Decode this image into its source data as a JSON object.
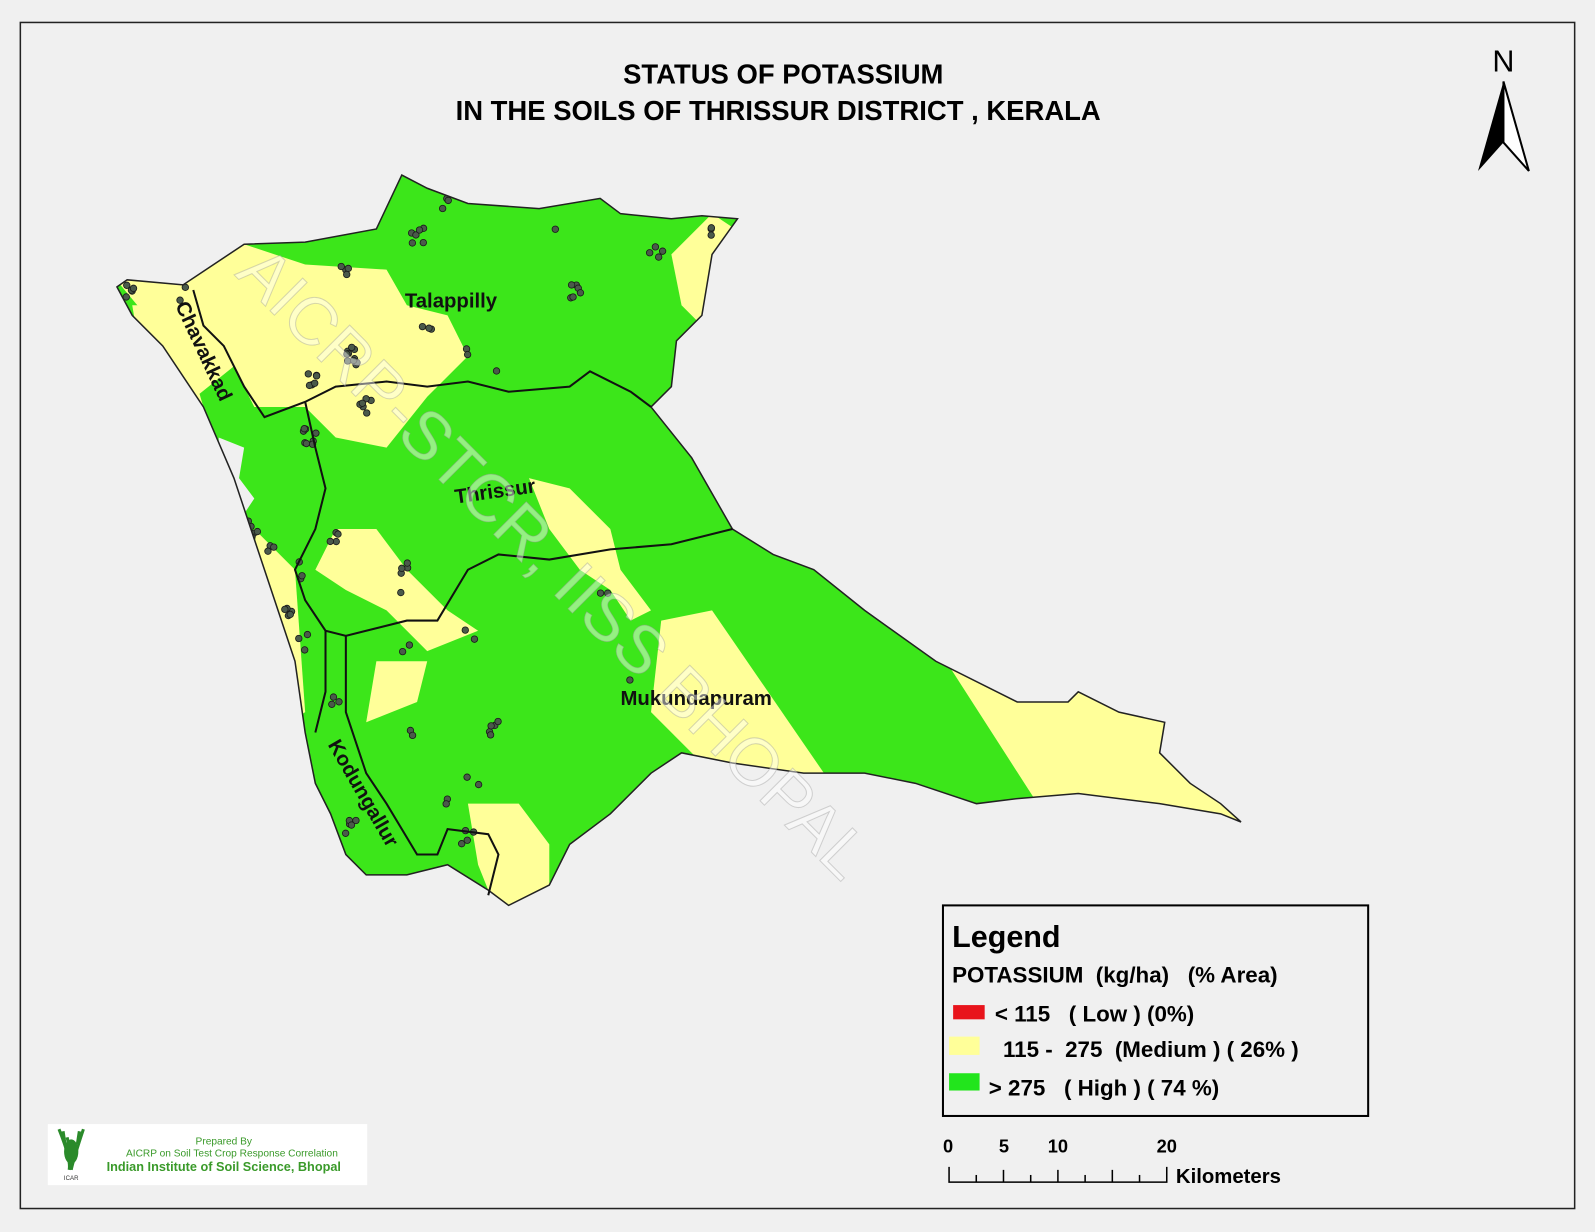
{
  "title": {
    "line1": "STATUS OF POTASSIUM",
    "line2": "IN THE SOILS OF THRISSUR DISTRICT , KERALA"
  },
  "north_arrow": {
    "label": "N",
    "icon": "north-arrow-icon"
  },
  "taluks": [
    "Talappilly",
    "Chavakkad",
    "Thrissur",
    "Mukundapuram",
    "Kodungallur"
  ],
  "watermark": "AICRP-STCR, IISS BHOPAL",
  "legend": {
    "title": "Legend",
    "header": "POTASSIUM  (kg/ha)   (% Area)",
    "items": [
      {
        "label": "< 115   ( Low ) (0%)",
        "color": "#e8141b",
        "percent": 0
      },
      {
        "label": "115 -  275  (Medium ) ( 26% )",
        "color": "#ffff99",
        "percent": 26
      },
      {
        "label": "> 275   ( High ) ( 74 %)",
        "color": "#22e51c",
        "percent": 74
      }
    ]
  },
  "scale_bar": {
    "ticks": [
      "0",
      "5",
      "10",
      "20"
    ],
    "unit": "Kilometers"
  },
  "credit": {
    "line1": "Prepared By",
    "line2": "AICRP on Soil Test Crop Response Correlation",
    "line3": "Indian Institute of Soil Science, Bhopal",
    "logo_text": "ICAR"
  },
  "colors": {
    "high": "#3ce61a",
    "medium": "#ffff99",
    "low": "#e8141b",
    "sample_point": "#4a5a4a"
  }
}
